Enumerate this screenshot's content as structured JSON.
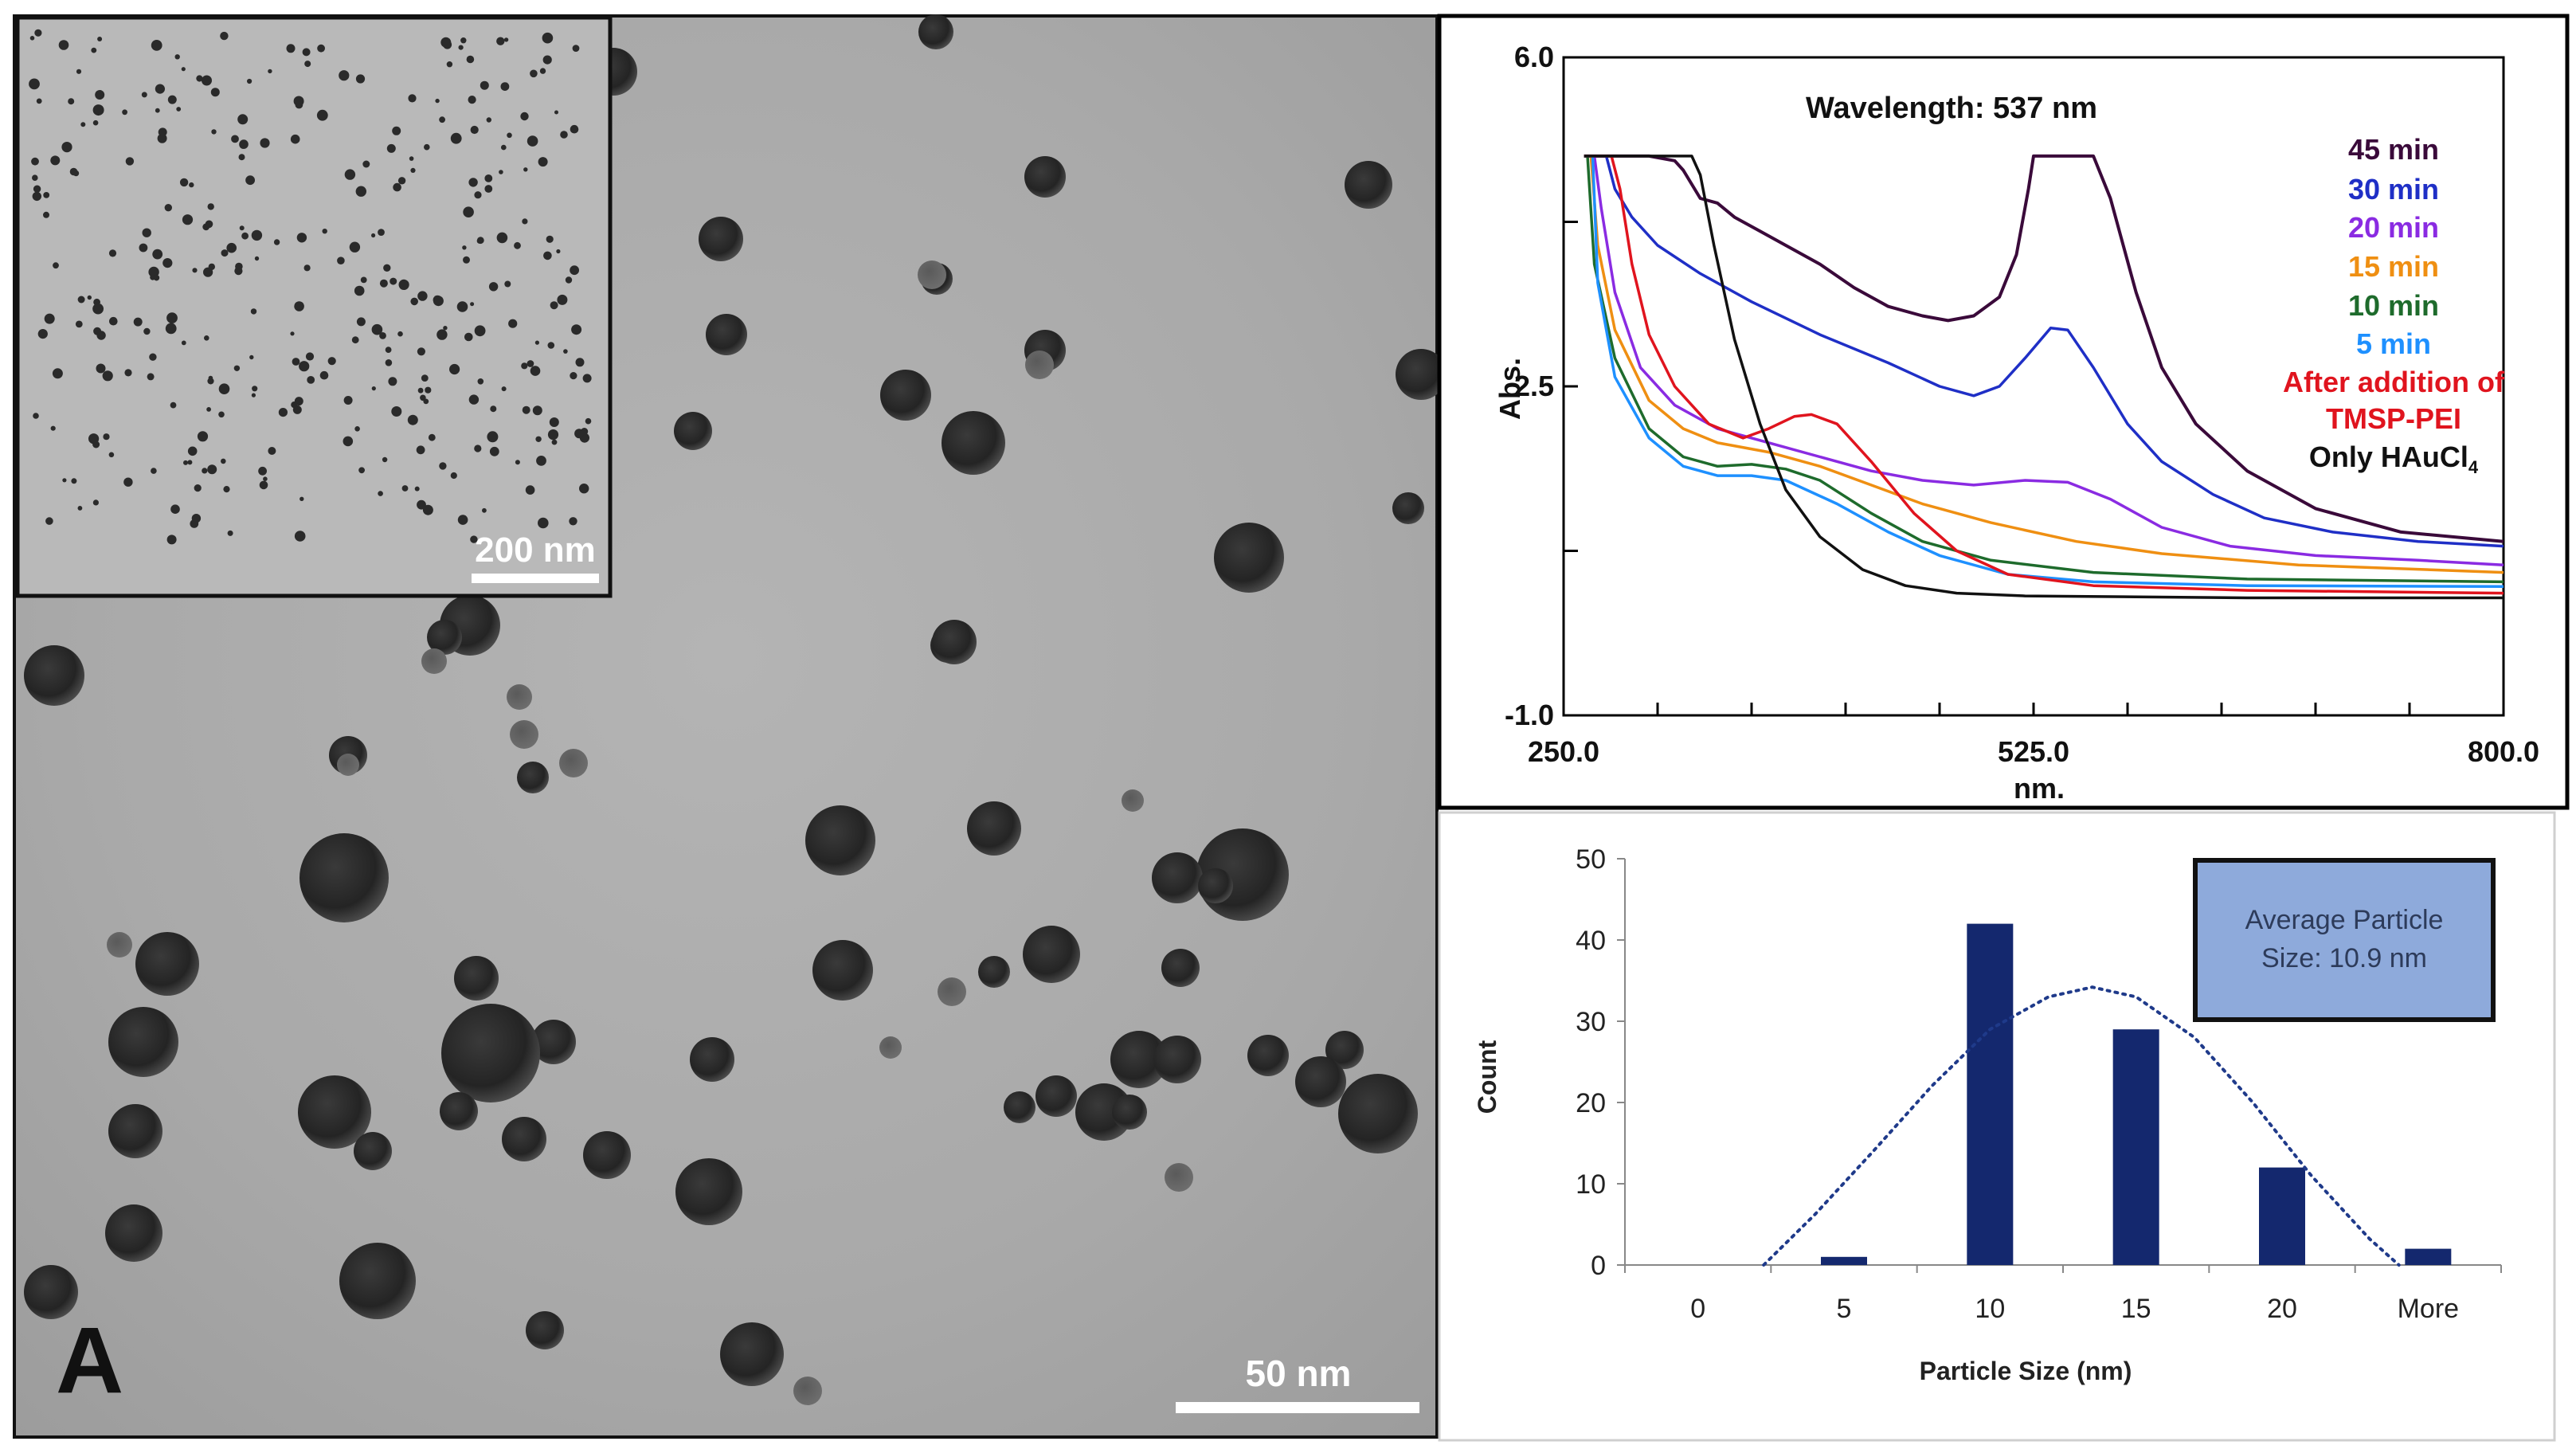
{
  "tem": {
    "panel_label": "A",
    "scale_main": "50 nm",
    "scale_inset": "200 nm"
  },
  "chart_data": [
    {
      "type": "line",
      "title": "Wavelength: 537 nm",
      "xlabel": "nm.",
      "ylabel": "Abs.",
      "xlim": [
        250.0,
        800.0
      ],
      "ylim": [
        -1.0,
        6.0
      ],
      "xtick_labels": [
        "250.0",
        "525.0",
        "800.0"
      ],
      "ytick_labels": [
        "6.0",
        "2.5",
        "-1.0"
      ],
      "xticks_minor": [
        250,
        305,
        360,
        415,
        470,
        525,
        580,
        635,
        690,
        745,
        800
      ],
      "yticks_minor": [
        -1.0,
        0.75,
        2.5,
        4.25,
        6.0
      ],
      "legend": [
        {
          "label": "45 min",
          "color": "#3a0a3a"
        },
        {
          "label": "30 min",
          "color": "#1f2fc6"
        },
        {
          "label": "20 min",
          "color": "#8a2be2"
        },
        {
          "label": "15 min",
          "color": "#ef8f12"
        },
        {
          "label": "10 min",
          "color": "#1e6b2c"
        },
        {
          "label": "5 min",
          "color": "#1e90ff"
        },
        {
          "label": "After addition of",
          "color": "#e0141e"
        },
        {
          "label": "TMSP-PEI",
          "color": "#e0141e"
        },
        {
          "label": "Only HAuCl",
          "color": "#111111",
          "subscript": "4"
        }
      ],
      "series": [
        {
          "name": "45 min",
          "color": "#3a0a3a",
          "points": [
            [
              262,
              4.95
            ],
            [
              300,
              4.95
            ],
            [
              315,
              4.9
            ],
            [
              320,
              4.8
            ],
            [
              330,
              4.5
            ],
            [
              340,
              4.45
            ],
            [
              350,
              4.3
            ],
            [
              365,
              4.15
            ],
            [
              380,
              4.0
            ],
            [
              400,
              3.8
            ],
            [
              420,
              3.55
            ],
            [
              440,
              3.35
            ],
            [
              460,
              3.25
            ],
            [
              475,
              3.2
            ],
            [
              490,
              3.25
            ],
            [
              505,
              3.45
            ],
            [
              515,
              3.9
            ],
            [
              522,
              4.6
            ],
            [
              525,
              4.95
            ],
            [
              560,
              4.95
            ],
            [
              570,
              4.5
            ],
            [
              585,
              3.5
            ],
            [
              600,
              2.7
            ],
            [
              620,
              2.1
            ],
            [
              650,
              1.6
            ],
            [
              690,
              1.2
            ],
            [
              740,
              0.95
            ],
            [
              800,
              0.85
            ]
          ]
        },
        {
          "name": "30 min",
          "color": "#1f2fc6",
          "points": [
            [
              262,
              4.95
            ],
            [
              275,
              4.95
            ],
            [
              280,
              4.6
            ],
            [
              290,
              4.3
            ],
            [
              305,
              4.0
            ],
            [
              330,
              3.7
            ],
            [
              360,
              3.4
            ],
            [
              400,
              3.05
            ],
            [
              440,
              2.75
            ],
            [
              470,
              2.5
            ],
            [
              490,
              2.4
            ],
            [
              505,
              2.5
            ],
            [
              520,
              2.8
            ],
            [
              535,
              3.12
            ],
            [
              545,
              3.1
            ],
            [
              560,
              2.7
            ],
            [
              580,
              2.1
            ],
            [
              600,
              1.7
            ],
            [
              630,
              1.35
            ],
            [
              660,
              1.1
            ],
            [
              700,
              0.95
            ],
            [
              750,
              0.85
            ],
            [
              800,
              0.8
            ]
          ]
        },
        {
          "name": "20 min",
          "color": "#8a2be2",
          "points": [
            [
              262,
              4.95
            ],
            [
              268,
              4.95
            ],
            [
              272,
              4.4
            ],
            [
              280,
              3.5
            ],
            [
              295,
              2.7
            ],
            [
              315,
              2.3
            ],
            [
              340,
              2.05
            ],
            [
              370,
              1.9
            ],
            [
              400,
              1.75
            ],
            [
              430,
              1.6
            ],
            [
              460,
              1.5
            ],
            [
              490,
              1.45
            ],
            [
              520,
              1.5
            ],
            [
              545,
              1.48
            ],
            [
              570,
              1.3
            ],
            [
              600,
              1.0
            ],
            [
              640,
              0.8
            ],
            [
              690,
              0.7
            ],
            [
              750,
              0.65
            ],
            [
              800,
              0.6
            ]
          ]
        },
        {
          "name": "15 min",
          "color": "#ef8f12",
          "points": [
            [
              262,
              4.95
            ],
            [
              266,
              4.95
            ],
            [
              270,
              4.0
            ],
            [
              280,
              3.1
            ],
            [
              300,
              2.35
            ],
            [
              320,
              2.05
            ],
            [
              340,
              1.9
            ],
            [
              370,
              1.8
            ],
            [
              400,
              1.65
            ],
            [
              430,
              1.45
            ],
            [
              460,
              1.25
            ],
            [
              500,
              1.05
            ],
            [
              550,
              0.85
            ],
            [
              600,
              0.72
            ],
            [
              680,
              0.6
            ],
            [
              800,
              0.52
            ]
          ]
        },
        {
          "name": "10 min",
          "color": "#1e6b2c",
          "points": [
            [
              262,
              4.95
            ],
            [
              264,
              4.95
            ],
            [
              268,
              3.8
            ],
            [
              280,
              2.8
            ],
            [
              300,
              2.05
            ],
            [
              320,
              1.75
            ],
            [
              340,
              1.65
            ],
            [
              360,
              1.67
            ],
            [
              380,
              1.62
            ],
            [
              400,
              1.5
            ],
            [
              430,
              1.15
            ],
            [
              460,
              0.85
            ],
            [
              500,
              0.65
            ],
            [
              560,
              0.52
            ],
            [
              650,
              0.45
            ],
            [
              800,
              0.42
            ]
          ]
        },
        {
          "name": "5 min",
          "color": "#1e90ff",
          "points": [
            [
              262,
              4.95
            ],
            [
              267,
              4.95
            ],
            [
              270,
              3.6
            ],
            [
              280,
              2.6
            ],
            [
              300,
              1.95
            ],
            [
              320,
              1.65
            ],
            [
              340,
              1.55
            ],
            [
              360,
              1.55
            ],
            [
              380,
              1.5
            ],
            [
              410,
              1.25
            ],
            [
              440,
              0.95
            ],
            [
              470,
              0.7
            ],
            [
              510,
              0.5
            ],
            [
              560,
              0.42
            ],
            [
              650,
              0.38
            ],
            [
              800,
              0.37
            ]
          ]
        },
        {
          "name": "After addition of TMSP-PEI",
          "color": "#e0141e",
          "points": [
            [
              262,
              4.95
            ],
            [
              278,
              4.95
            ],
            [
              283,
              4.6
            ],
            [
              290,
              3.8
            ],
            [
              300,
              3.05
            ],
            [
              315,
              2.5
            ],
            [
              335,
              2.1
            ],
            [
              355,
              1.95
            ],
            [
              370,
              2.05
            ],
            [
              385,
              2.18
            ],
            [
              395,
              2.2
            ],
            [
              410,
              2.1
            ],
            [
              430,
              1.7
            ],
            [
              455,
              1.15
            ],
            [
              480,
              0.75
            ],
            [
              510,
              0.5
            ],
            [
              560,
              0.38
            ],
            [
              650,
              0.33
            ],
            [
              800,
              0.3
            ]
          ]
        },
        {
          "name": "Only HAuCl4",
          "color": "#111111",
          "points": [
            [
              262,
              4.95
            ],
            [
              325,
              4.95
            ],
            [
              330,
              4.75
            ],
            [
              338,
              4.0
            ],
            [
              350,
              3.0
            ],
            [
              365,
              2.1
            ],
            [
              380,
              1.4
            ],
            [
              400,
              0.9
            ],
            [
              425,
              0.55
            ],
            [
              450,
              0.38
            ],
            [
              480,
              0.3
            ],
            [
              520,
              0.27
            ],
            [
              650,
              0.25
            ],
            [
              800,
              0.25
            ]
          ]
        }
      ]
    },
    {
      "type": "bar",
      "xlabel": "Particle Size (nm)",
      "ylabel": "Count",
      "categories": [
        "0",
        "5",
        "10",
        "15",
        "20",
        "More"
      ],
      "values": [
        0,
        1,
        42,
        29,
        12,
        2
      ],
      "ylim": [
        0,
        50
      ],
      "ytick_labels": [
        "0",
        "10",
        "20",
        "30",
        "40",
        "50"
      ],
      "bar_color": "#14286e",
      "trendline": {
        "style": "dotted",
        "color": "#1f3a8a",
        "points": [
          [
            0.45,
            0
          ],
          [
            0.8,
            6.2
          ],
          [
            1.2,
            14
          ],
          [
            1.6,
            22
          ],
          [
            2.0,
            29
          ],
          [
            2.4,
            33
          ],
          [
            2.7,
            34.2
          ],
          [
            3.0,
            33
          ],
          [
            3.4,
            28
          ],
          [
            3.8,
            20
          ],
          [
            4.2,
            11
          ],
          [
            4.6,
            3.2
          ],
          [
            4.8,
            0
          ]
        ]
      },
      "annotation": {
        "line1": "Average Particle",
        "line2": "Size: 10.9 nm",
        "fill": "#8eaadb"
      }
    }
  ]
}
